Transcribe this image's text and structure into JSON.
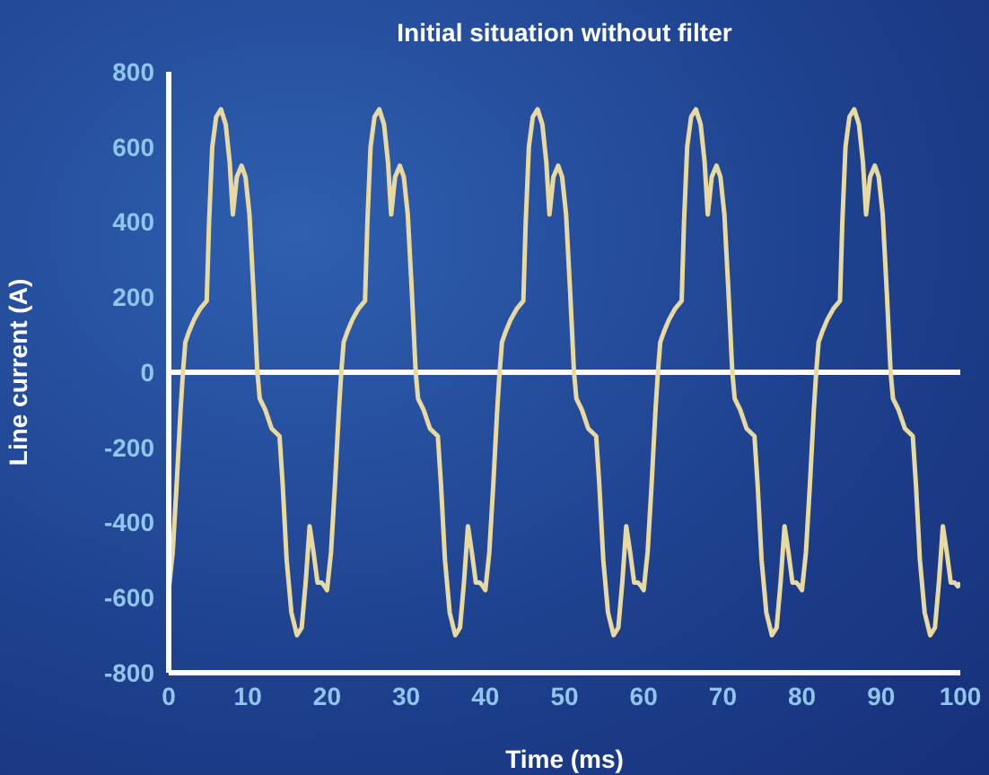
{
  "chart_data": {
    "type": "line",
    "title": "Initial situation without filter",
    "xlabel": "Time (ms)",
    "ylabel": "Line current (A)",
    "xlim": [
      0,
      100
    ],
    "xticks": [
      0,
      10,
      20,
      30,
      40,
      50,
      60,
      70,
      80,
      90,
      100
    ],
    "ylim": [
      -800,
      800
    ],
    "yticks": [
      -800,
      -600,
      -400,
      -200,
      0,
      200,
      400,
      600,
      800
    ],
    "grid": false,
    "legend": false,
    "marker": "none",
    "line_style": "solid",
    "ref_lines": [
      {
        "axis": "y",
        "value": 0,
        "color": "#ffffff"
      }
    ],
    "series": [
      {
        "color": "#e8d9a0",
        "x": [
          0,
          0.5,
          1,
          1.5,
          1.8,
          2.1,
          2.6,
          3.2,
          4,
          4.8,
          5.1,
          5.5,
          6,
          6.6,
          7.2,
          7.7,
          8.1,
          8.6,
          9.2,
          9.7,
          10.2,
          10.7,
          11.2,
          11.5,
          12.2,
          13,
          14,
          14.4,
          14.9,
          15.5,
          16.2,
          16.8,
          17.3,
          17.8,
          18.3,
          18.8,
          19.3,
          19.7,
          20,
          20.5,
          21,
          21.5,
          21.8,
          22.1,
          22.6,
          23.2,
          24,
          24.8,
          25.1,
          25.5,
          26,
          26.6,
          27.2,
          27.7,
          28.1,
          28.6,
          29.2,
          29.7,
          30.2,
          30.7,
          31.2,
          31.5,
          32.2,
          33,
          34,
          34.4,
          34.9,
          35.5,
          36.2,
          36.8,
          37.3,
          37.8,
          38.3,
          38.8,
          39.3,
          39.7,
          40,
          40.5,
          41,
          41.5,
          41.8,
          42.1,
          42.6,
          43.2,
          44,
          44.8,
          45.1,
          45.5,
          46,
          46.6,
          47.2,
          47.7,
          48.1,
          48.6,
          49.2,
          49.7,
          50.2,
          50.7,
          51.2,
          51.5,
          52.2,
          53,
          54,
          54.4,
          54.9,
          55.5,
          56.2,
          56.8,
          57.3,
          57.8,
          58.3,
          58.8,
          59.3,
          59.7,
          60,
          60.5,
          61,
          61.5,
          61.8,
          62.1,
          62.6,
          63.2,
          64,
          64.8,
          65.1,
          65.5,
          66,
          66.6,
          67.2,
          67.7,
          68.1,
          68.6,
          69.2,
          69.7,
          70.2,
          70.7,
          71.2,
          71.5,
          72.2,
          73,
          74,
          74.4,
          74.9,
          75.5,
          76.2,
          76.8,
          77.3,
          77.8,
          78.3,
          78.8,
          79.3,
          79.7,
          80,
          80.5,
          81,
          81.5,
          81.8,
          82.1,
          82.6,
          83.2,
          84,
          84.8,
          85.1,
          85.5,
          86,
          86.6,
          87.2,
          87.7,
          88.1,
          88.6,
          89.2,
          89.7,
          90.2,
          90.7,
          91.2,
          91.5,
          92.2,
          93,
          94,
          94.4,
          94.9,
          95.5,
          96.2,
          96.8,
          97.3,
          97.8,
          98.3,
          98.8,
          99.3,
          99.7,
          100
        ],
        "values": [
          -580,
          -480,
          -300,
          -100,
          0,
          80,
          110,
          140,
          170,
          190,
          400,
          600,
          680,
          700,
          660,
          560,
          420,
          520,
          550,
          520,
          420,
          220,
          0,
          -70,
          -100,
          -150,
          -170,
          -300,
          -500,
          -640,
          -700,
          -680,
          -560,
          -410,
          -480,
          -560,
          -560,
          -570,
          -580,
          -480,
          -300,
          -100,
          0,
          80,
          110,
          140,
          170,
          190,
          400,
          600,
          680,
          700,
          660,
          560,
          420,
          520,
          550,
          520,
          420,
          220,
          0,
          -70,
          -100,
          -150,
          -170,
          -300,
          -500,
          -640,
          -700,
          -680,
          -560,
          -410,
          -480,
          -560,
          -560,
          -570,
          -580,
          -480,
          -300,
          -100,
          0,
          80,
          110,
          140,
          170,
          190,
          400,
          600,
          680,
          700,
          660,
          560,
          420,
          520,
          550,
          520,
          420,
          220,
          0,
          -70,
          -100,
          -150,
          -170,
          -300,
          -500,
          -640,
          -700,
          -680,
          -560,
          -410,
          -480,
          -560,
          -560,
          -570,
          -580,
          -480,
          -300,
          -100,
          0,
          80,
          110,
          140,
          170,
          190,
          400,
          600,
          680,
          700,
          660,
          560,
          420,
          520,
          550,
          520,
          420,
          220,
          0,
          -70,
          -100,
          -150,
          -170,
          -300,
          -500,
          -640,
          -700,
          -680,
          -560,
          -410,
          -480,
          -560,
          -560,
          -570,
          -580,
          -480,
          -300,
          -100,
          0,
          80,
          110,
          140,
          170,
          190,
          400,
          600,
          680,
          700,
          660,
          560,
          420,
          520,
          550,
          520,
          420,
          220,
          0,
          -70,
          -100,
          -150,
          -170,
          -300,
          -500,
          -640,
          -700,
          -680,
          -560,
          -410,
          -480,
          -560,
          -560,
          -570,
          -560
        ]
      }
    ]
  }
}
